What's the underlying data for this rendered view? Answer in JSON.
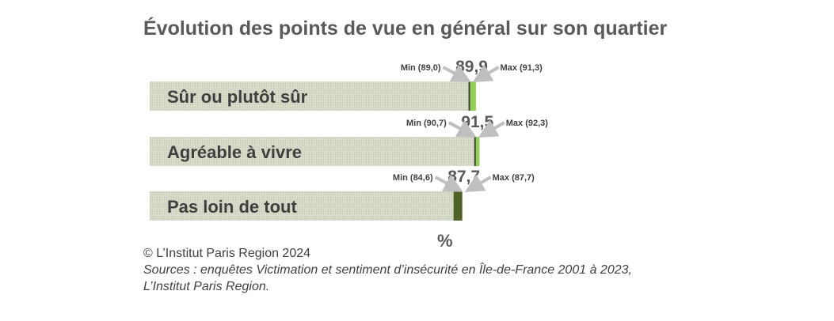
{
  "title": "Évolution des points de vue en général sur son quartier",
  "unit": "%",
  "credit": "© L’Institut Paris Region 2024",
  "sources": {
    "line1": "Sources : enquêtes Victimation et sentiment d’insécurité en Île-de-France 2001 à 2023,",
    "line2": "L’Institut Paris Region."
  },
  "colors": {
    "bar_light": "#d6dcc9",
    "hatch": "#b5bfa3",
    "accent_green": "#92d050",
    "dark_green": "#4f6228",
    "arrow": "#bfbfbf",
    "text": "#595959"
  },
  "chart_data": {
    "type": "bar",
    "orientation": "horizontal",
    "title": "Évolution des points de vue en général sur son quartier",
    "xlabel": "%",
    "ylabel": "",
    "categories": [
      "Sûr ou plutôt sûr",
      "Agréable à vivre",
      "Pas loin de tout"
    ],
    "values": [
      89.9,
      91.5,
      87.7
    ],
    "value_labels": [
      "89,9",
      "91,5",
      "87,7"
    ],
    "min": [
      89.0,
      90.7,
      84.6
    ],
    "min_labels": [
      "Min (89,0)",
      "Min (90,7)",
      "Min (84,6)"
    ],
    "max": [
      91.3,
      92.3,
      87.7
    ],
    "max_labels": [
      "Max (91,3)",
      "Max (92,3)",
      "Max (87,7)"
    ],
    "grid": false,
    "legend": "none"
  }
}
